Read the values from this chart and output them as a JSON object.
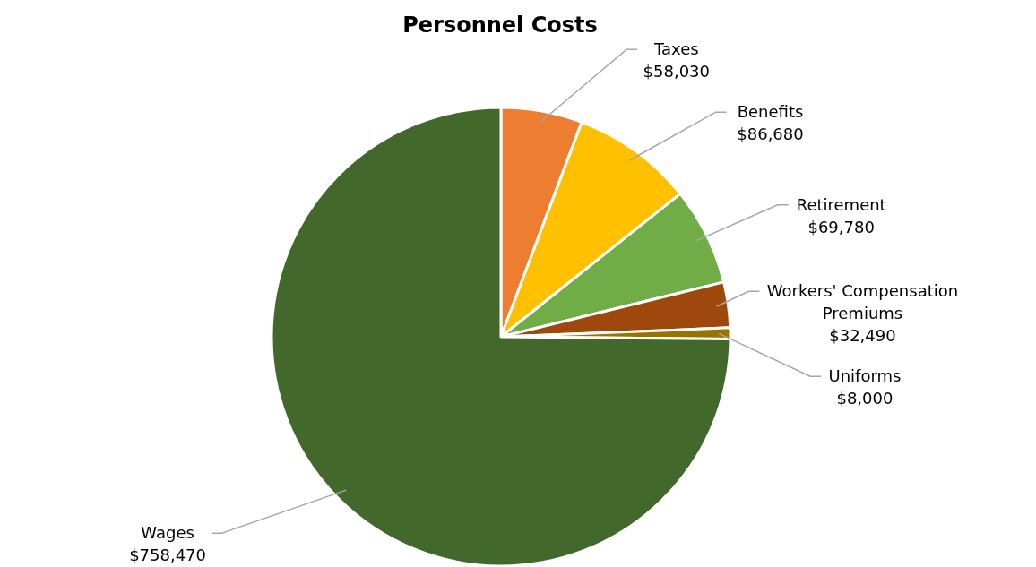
{
  "chart_data": {
    "type": "pie",
    "title": "Personnel Costs",
    "categories": [
      "Taxes",
      "Benefits",
      "Retirement",
      "Workers' Compensation Premiums",
      "Uniforms",
      "Wages"
    ],
    "values": [
      58030,
      86680,
      69780,
      32490,
      8000,
      758470
    ],
    "value_labels": [
      "$58,030",
      "$86,680",
      "$69,780",
      "$32,490",
      "$8,000",
      "$758,470"
    ],
    "colors": [
      "#ed7d31",
      "#ffc000",
      "#70ad47",
      "#9e480e",
      "#997300",
      "#43682b"
    ]
  }
}
